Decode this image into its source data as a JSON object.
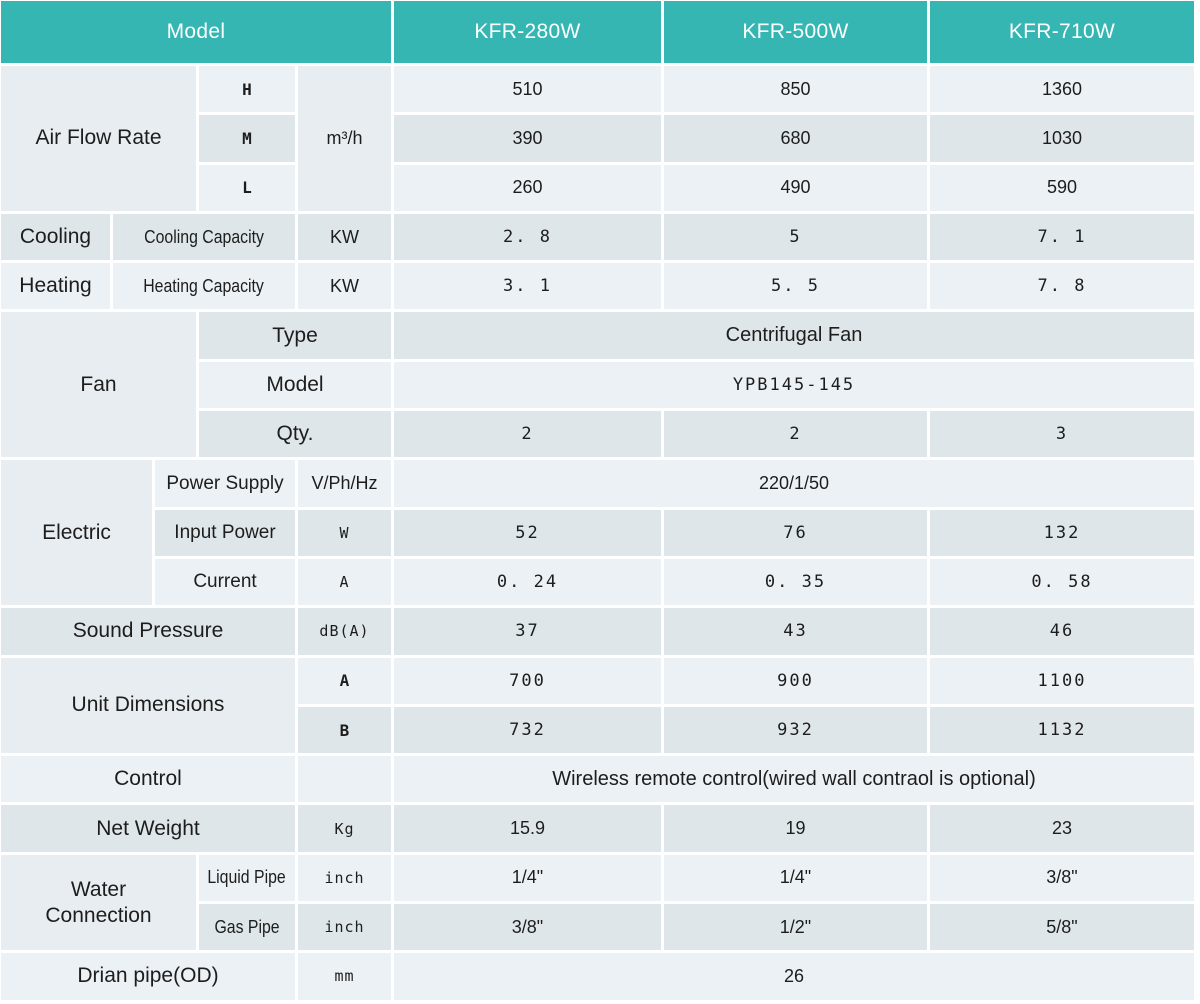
{
  "colors": {
    "accent_teal": "#35b6b3",
    "row_light": "#ecf1f5",
    "row_dark": "#dfe6ea",
    "merged_cell": "#e7edf0",
    "header_text": "#fdfefe",
    "body_text": "#1d1d1d"
  },
  "header": {
    "model_label": "Model",
    "models": [
      "KFR-280W",
      "KFR-500W",
      "KFR-710W"
    ]
  },
  "air_flow": {
    "label": "Air Flow Rate",
    "unit": "m³/h",
    "rows": [
      {
        "speed": "H",
        "values": [
          "510",
          "850",
          "1360"
        ]
      },
      {
        "speed": "M",
        "values": [
          "390",
          "680",
          "1030"
        ]
      },
      {
        "speed": "L",
        "values": [
          "260",
          "490",
          "590"
        ]
      }
    ]
  },
  "cooling": {
    "label": "Cooling",
    "sub": "Cooling Capacity",
    "unit": "KW",
    "values": [
      "2. 8",
      "5",
      "7. 1"
    ]
  },
  "heating": {
    "label": "Heating",
    "sub": "Heating Capacity",
    "unit": "KW",
    "values": [
      "3. 1",
      "5. 5",
      "7. 8"
    ]
  },
  "fan": {
    "label": "Fan",
    "type_label": "Type",
    "type_value": "Centrifugal Fan",
    "model_label": "Model",
    "model_value": "YPB145-145",
    "qty_label": "Qty.",
    "qty_values": [
      "2",
      "2",
      "3"
    ]
  },
  "electric": {
    "label": "Electric",
    "power_supply": {
      "sub": "Power Supply",
      "unit": "V/Ph/Hz",
      "value": "220/1/50"
    },
    "input_power": {
      "sub": "Input Power",
      "unit": "W",
      "values": [
        "52",
        "76",
        "132"
      ]
    },
    "current": {
      "sub": "Current",
      "unit": "A",
      "values": [
        "0. 24",
        "0. 35",
        "0. 58"
      ]
    }
  },
  "sound_pressure": {
    "label": "Sound Pressure",
    "unit": "dB(A)",
    "values": [
      "37",
      "43",
      "46"
    ]
  },
  "unit_dimensions": {
    "label": "Unit Dimensions",
    "rows": [
      {
        "dim": "A",
        "values": [
          "700",
          "900",
          "1100"
        ]
      },
      {
        "dim": "B",
        "values": [
          "732",
          "932",
          "1132"
        ]
      }
    ]
  },
  "control": {
    "label": "Control",
    "value": "Wireless remote control(wired wall contraol is optional)"
  },
  "net_weight": {
    "label": "Net Weight",
    "unit": "Kg",
    "values": [
      "15.9",
      "19",
      "23"
    ]
  },
  "water_connection": {
    "label": "Water Connection",
    "rows": [
      {
        "sub": "Liquid Pipe",
        "unit": "inch",
        "values": [
          "1/4\"",
          "1/4\"",
          "3/8\""
        ]
      },
      {
        "sub": "Gas Pipe",
        "unit": "inch",
        "values": [
          "3/8\"",
          "1/2\"",
          "5/8\""
        ]
      }
    ]
  },
  "drain_pipe": {
    "label": "Drian pipe(OD)",
    "unit": "mm",
    "value": "26"
  }
}
